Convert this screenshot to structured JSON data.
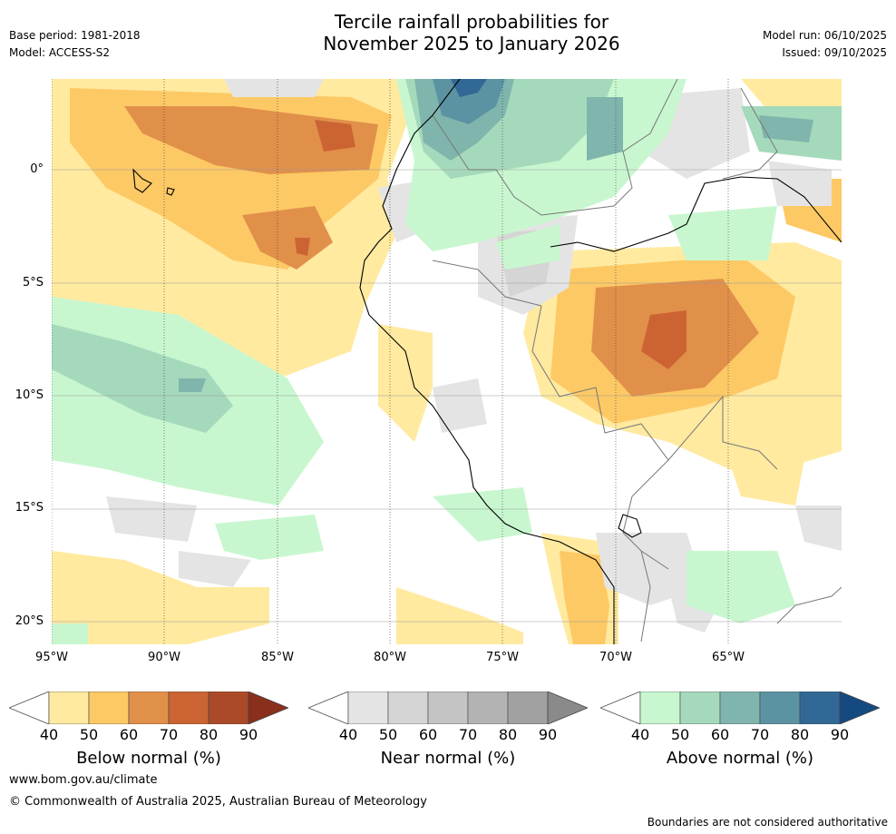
{
  "header": {
    "title_line1": "Tercile rainfall probabilities for",
    "title_line2": "November 2025 to January 2026",
    "base_period": "Base period: 1981-2018",
    "model": "Model: ACCESS-S2",
    "model_run": "Model run: 06/10/2025",
    "issued": "Issued: 09/10/2025"
  },
  "axes": {
    "lon_labels": [
      "95°W",
      "90°W",
      "85°W",
      "80°W",
      "75°W",
      "70°W",
      "65°W"
    ],
    "lat_labels": [
      "0°",
      "5°S",
      "10°S",
      "15°S",
      "20°S"
    ]
  },
  "colorbars": [
    {
      "title": "Below normal (%)",
      "ticks": [
        "40",
        "50",
        "60",
        "70",
        "80",
        "90"
      ],
      "colors": [
        "#ffeaa0",
        "#fdc965",
        "#e1904a",
        "#cb6432",
        "#ab4a28",
        "#8a2f1c"
      ]
    },
    {
      "title": "Near normal (%)",
      "ticks": [
        "40",
        "50",
        "60",
        "70",
        "80",
        "90"
      ],
      "colors": [
        "#e4e4e4",
        "#d5d5d5",
        "#c4c4c4",
        "#b3b3b3",
        "#a1a1a1",
        "#8a8a8a"
      ]
    },
    {
      "title": "Above normal (%)",
      "ticks": [
        "40",
        "50",
        "60",
        "70",
        "80",
        "90"
      ],
      "colors": [
        "#c8f7cf",
        "#a5d9bb",
        "#80b5ad",
        "#5b93a3",
        "#326895",
        "#144a80"
      ]
    }
  ],
  "footer": {
    "website": "www.bom.gov.au/climate",
    "copyright": "© Commonwealth of Australia 2025, Australian Bureau of Meteorology",
    "disclaimer": "Boundaries are not considered authoritative"
  }
}
